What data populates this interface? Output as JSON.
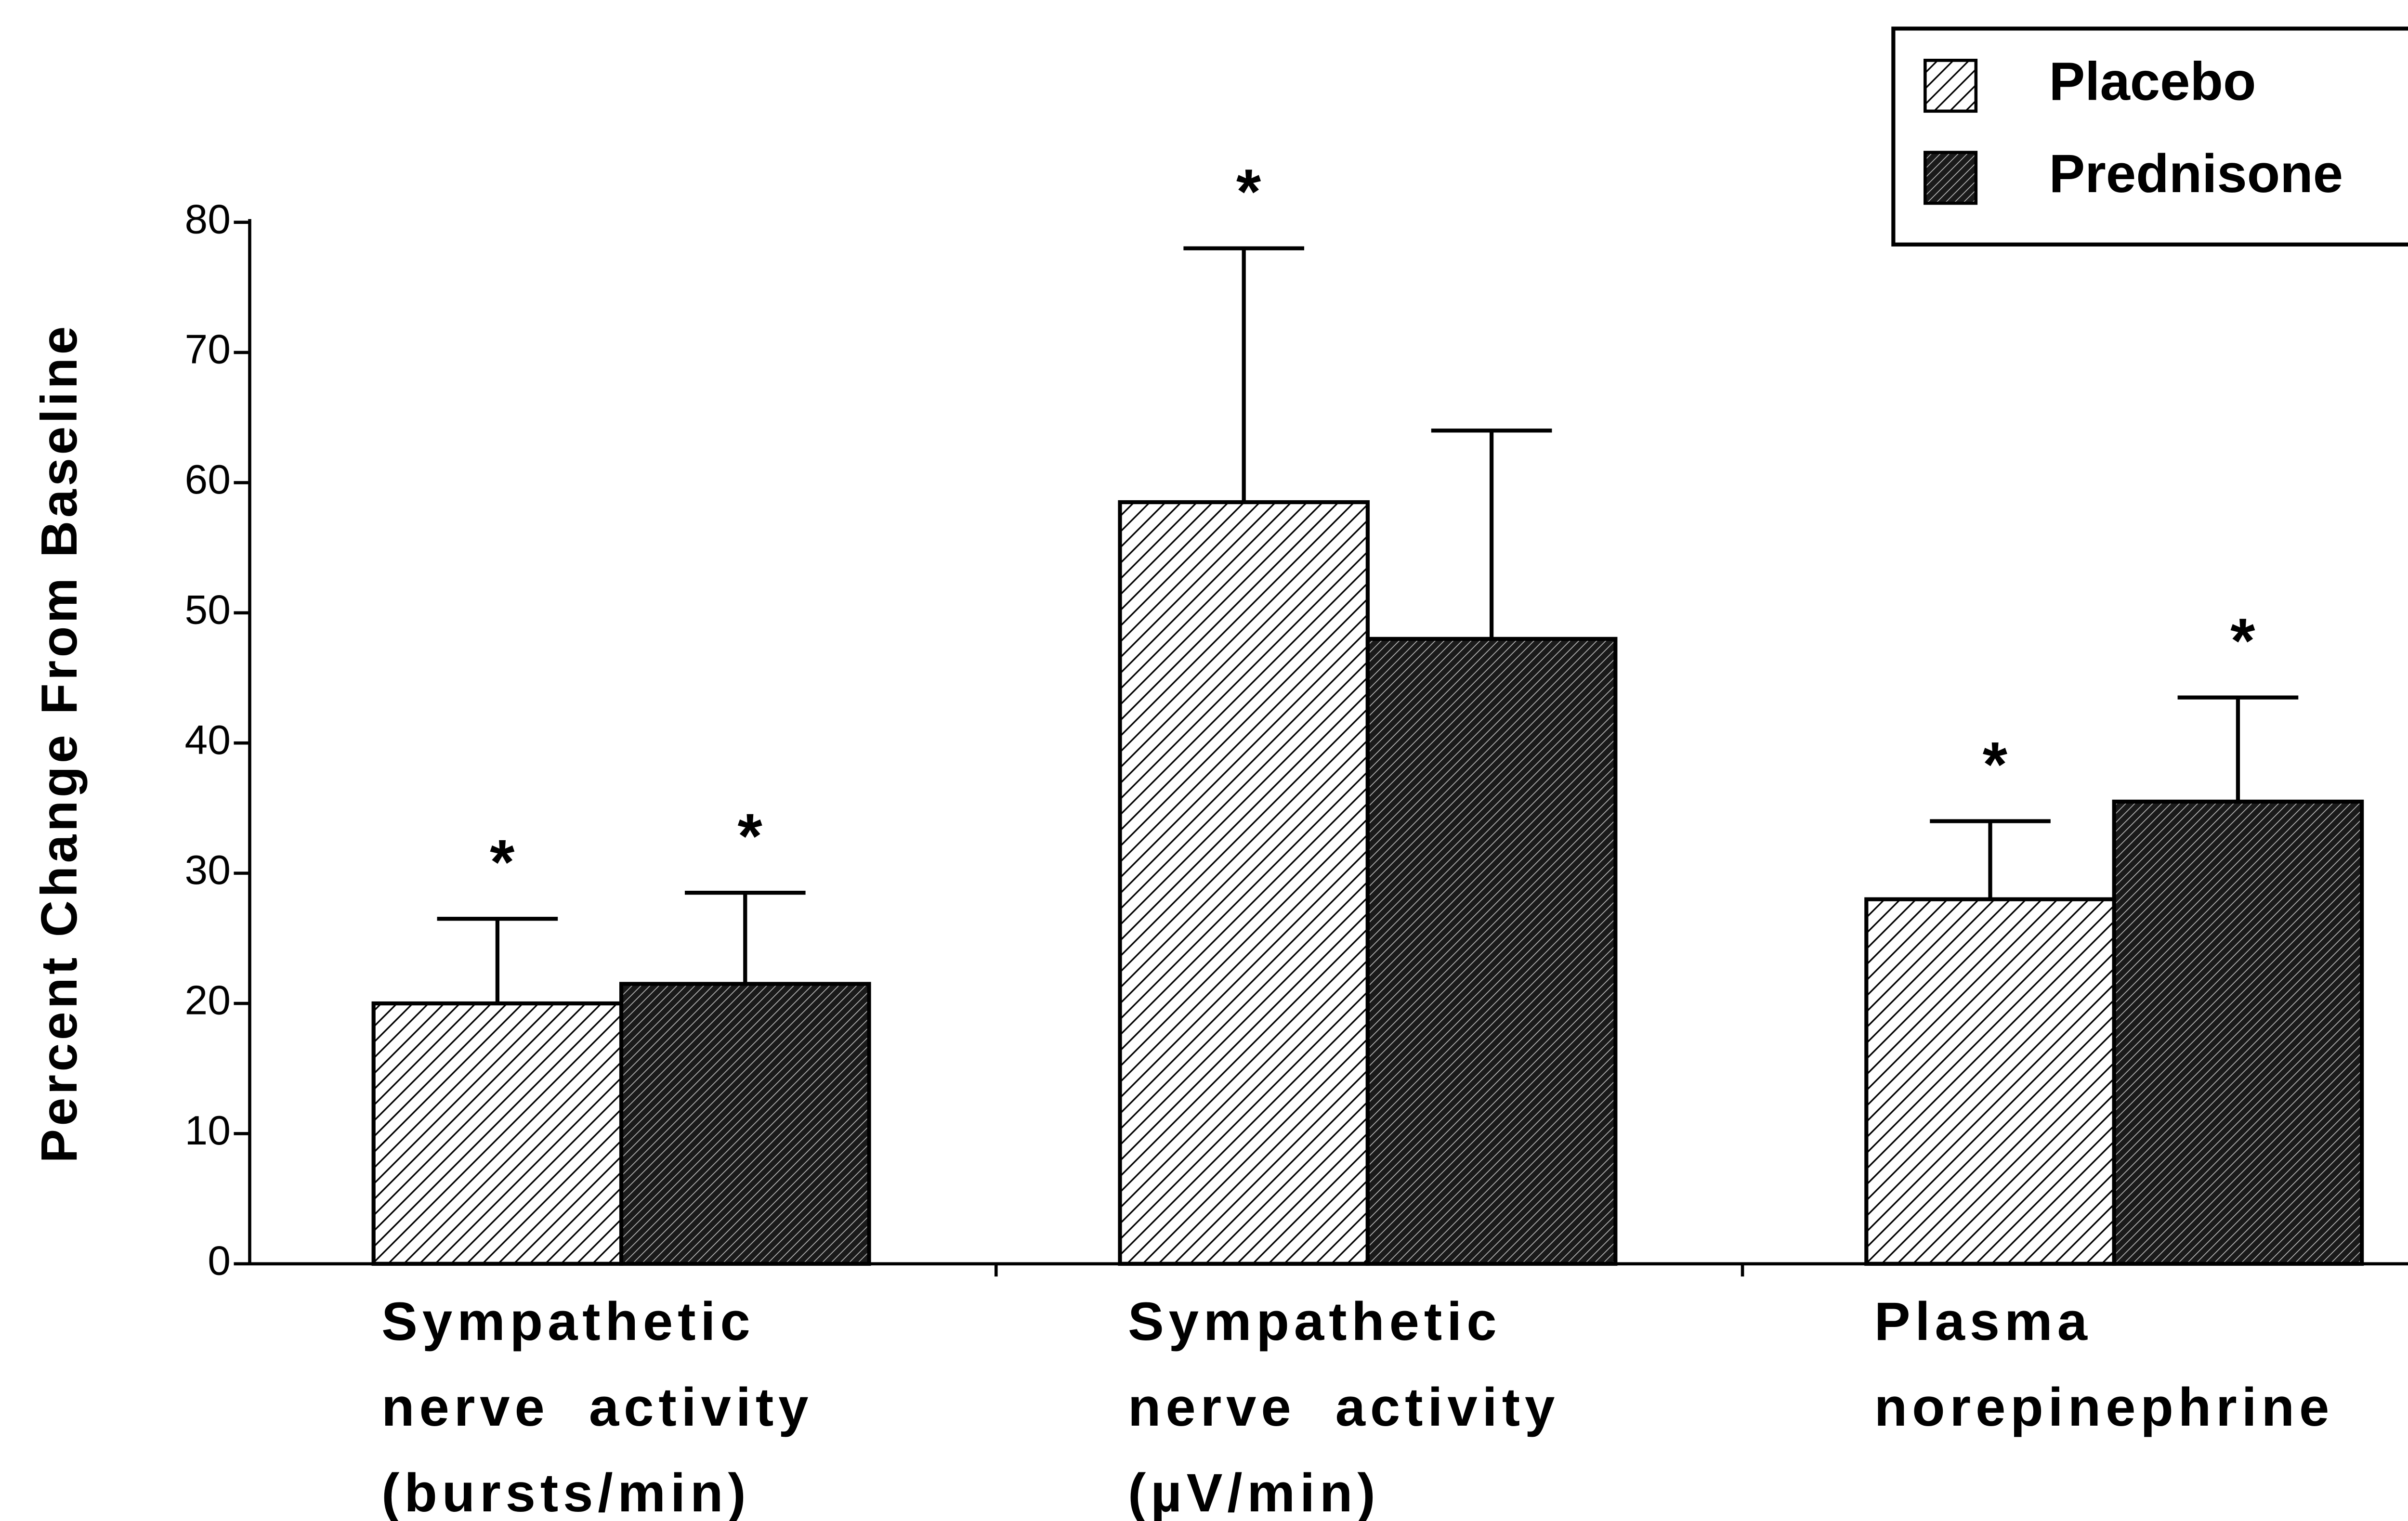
{
  "chart_data": {
    "type": "bar",
    "ylabel": "Percent Change From Baseline",
    "categories": [
      "Sympathetic\nnerve  activity\n(bursts/min)",
      "Sympathetic\nnerve  activity\n(µV/min)",
      "Plasma\nnorepinephrine"
    ],
    "series": [
      {
        "name": "Placebo",
        "color": "#000000",
        "pattern": "light-hatch",
        "values": [
          20,
          58.5,
          28
        ],
        "errors": [
          6.5,
          19.5,
          6
        ],
        "markers": [
          "*",
          "*",
          "*"
        ]
      },
      {
        "name": "Prednisone",
        "color": "#000000",
        "pattern": "dense-hatch",
        "values": [
          21.5,
          48,
          35.5
        ],
        "errors": [
          7,
          16,
          8
        ],
        "markers": [
          "*",
          null,
          "*"
        ]
      }
    ],
    "ylim": [
      0,
      80
    ],
    "yticks": [
      0,
      10,
      20,
      30,
      40,
      50,
      60,
      70,
      80
    ],
    "grid": false,
    "legend": "upper right"
  }
}
